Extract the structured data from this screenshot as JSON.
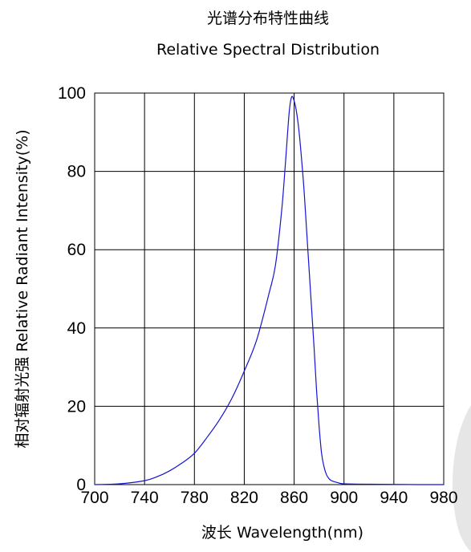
{
  "chart_data": {
    "type": "line",
    "title": "光谱分布特性曲线",
    "subtitle": "Relative Spectral Distribution",
    "xlabel": "波长  Wavelength(nm)",
    "ylabel": "相对辐射光强   Relative  Radiant Intensity(%)",
    "xlim": [
      700,
      980
    ],
    "ylim": [
      0,
      100
    ],
    "x_ticks": [
      "700",
      "740",
      "780",
      "820",
      "860",
      "900",
      "940",
      "980"
    ],
    "y_ticks": [
      "0",
      "20",
      "40",
      "60",
      "80",
      "100"
    ],
    "grid": true,
    "line_color": "#1414d2",
    "series": [
      {
        "x": [
          700,
          720,
          740,
          750,
          760,
          770,
          780,
          790,
          800,
          810,
          820,
          830,
          840,
          845,
          850,
          853,
          856,
          858,
          860,
          862,
          864,
          866,
          868,
          870,
          872,
          874,
          876,
          878,
          880,
          882,
          884,
          886,
          888,
          890,
          895,
          900,
          920,
          940,
          960,
          980
        ],
        "y": [
          0,
          0.2,
          1,
          2,
          3.5,
          5.5,
          8,
          12,
          16.5,
          22,
          29,
          37,
          49,
          56,
          70,
          82,
          95,
          99,
          98,
          95,
          90,
          83,
          75,
          65,
          55,
          45,
          35,
          24,
          15,
          8,
          4.5,
          2.5,
          1.5,
          1,
          0.5,
          0.2,
          0.1,
          0.05,
          0,
          0
        ]
      }
    ]
  }
}
